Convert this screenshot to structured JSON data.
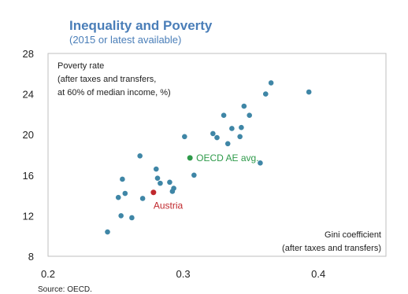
{
  "title": "Inequality and Poverty",
  "subtitle": "(2015 or latest available)",
  "source": "Source: OECD.",
  "y_axis_note": [
    "Poverty rate",
    "(after taxes and transfers,",
    "at 60% of median income, %)"
  ],
  "x_axis_note": [
    "Gini coefficient",
    "(after taxes and transfers)"
  ],
  "colors": {
    "title": "#4a7eb8",
    "points": "#3f86a6",
    "austria": "#c0282d",
    "oecd": "#2e9a4a",
    "frame": "#bfbfbf"
  },
  "chart_data": {
    "type": "scatter",
    "xlim": [
      0.2,
      0.45
    ],
    "ylim": [
      8,
      28
    ],
    "x_ticks": [
      "0.2",
      "0.3",
      "0.4"
    ],
    "x_tick_values": [
      0.2,
      0.3,
      0.4
    ],
    "y_ticks": [
      "8",
      "12",
      "16",
      "20",
      "24",
      "28"
    ],
    "y_tick_values": [
      8,
      12,
      16,
      20,
      24,
      28
    ],
    "grid": false,
    "points": [
      [
        0.244,
        10.4
      ],
      [
        0.252,
        13.8
      ],
      [
        0.254,
        12.0
      ],
      [
        0.255,
        15.6
      ],
      [
        0.257,
        14.2
      ],
      [
        0.262,
        11.8
      ],
      [
        0.268,
        17.9
      ],
      [
        0.27,
        13.7
      ],
      [
        0.28,
        16.6
      ],
      [
        0.281,
        15.7
      ],
      [
        0.283,
        15.2
      ],
      [
        0.29,
        15.3
      ],
      [
        0.292,
        14.4
      ],
      [
        0.293,
        14.7
      ],
      [
        0.301,
        19.8
      ],
      [
        0.308,
        16.0
      ],
      [
        0.322,
        20.1
      ],
      [
        0.325,
        19.7
      ],
      [
        0.33,
        21.9
      ],
      [
        0.333,
        19.1
      ],
      [
        0.336,
        20.6
      ],
      [
        0.342,
        19.8
      ],
      [
        0.343,
        20.7
      ],
      [
        0.345,
        22.8
      ],
      [
        0.349,
        21.9
      ],
      [
        0.357,
        17.2
      ],
      [
        0.361,
        24.0
      ],
      [
        0.365,
        25.1
      ],
      [
        0.393,
        24.2
      ]
    ],
    "highlights": [
      {
        "label": "Austria",
        "x": 0.278,
        "y": 14.3,
        "color": "#c0282d"
      },
      {
        "label": "OECD AE avg.",
        "x": 0.305,
        "y": 17.7,
        "color": "#2e9a4a"
      }
    ]
  }
}
